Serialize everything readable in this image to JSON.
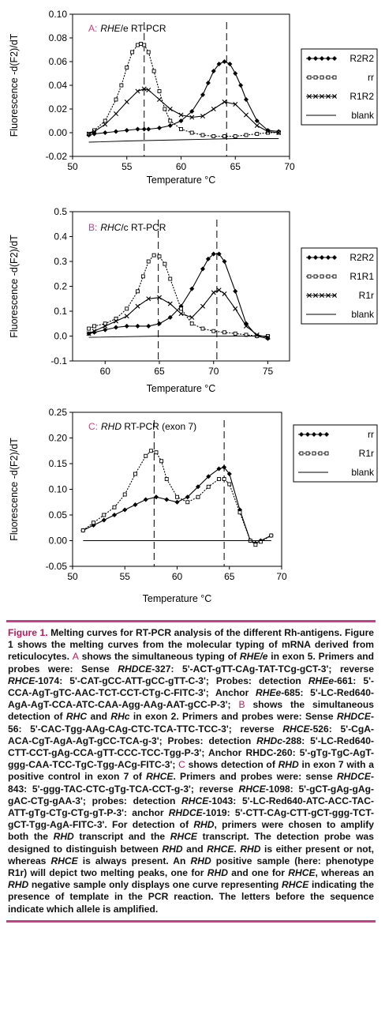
{
  "chart_data": [
    {
      "type": "line",
      "panel_letter": "A",
      "title": "RHE/e RT-PCR",
      "title_letter": "A:",
      "title_rest_italic": "RHE",
      "title_rest": "/e RT-PCR",
      "xlabel": "Temperature °C",
      "ylabel": "Fluorescence -d(F2)/dT",
      "xlim": [
        50,
        70
      ],
      "ylim": [
        -0.02,
        0.1
      ],
      "xticks": [
        "50",
        "55",
        "60",
        "65",
        "70"
      ],
      "yticks": [
        "-0.02",
        "0.00",
        "0.02",
        "0.04",
        "0.06",
        "0.08",
        "0.10"
      ],
      "vlines": [
        56.6,
        64.2
      ],
      "legend_position": "right",
      "series": [
        {
          "name": "R2R2",
          "style": "filled-diamond",
          "x": [
            51.5,
            52,
            53,
            54,
            55,
            56,
            56.6,
            57,
            58,
            59,
            60,
            61,
            62,
            62.5,
            63,
            63.5,
            64,
            64.5,
            65,
            65.5,
            66,
            67,
            68,
            69
          ],
          "y": [
            -0.002,
            -0.001,
            0,
            0.001,
            0.002,
            0.003,
            0.003,
            0.003,
            0.004,
            0.006,
            0.01,
            0.018,
            0.032,
            0.042,
            0.052,
            0.058,
            0.06,
            0.058,
            0.05,
            0.04,
            0.028,
            0.01,
            0.002,
            0.001
          ]
        },
        {
          "name": "rr",
          "style": "open-square",
          "x": [
            51.5,
            52,
            53,
            54,
            54.5,
            55,
            55.5,
            56,
            56.3,
            56.6,
            57,
            57.5,
            58,
            58.5,
            59,
            60,
            61,
            62,
            63,
            64,
            65,
            66,
            67,
            68,
            69
          ],
          "y": [
            -0.001,
            0.002,
            0.01,
            0.028,
            0.04,
            0.055,
            0.068,
            0.074,
            0.075,
            0.074,
            0.068,
            0.052,
            0.035,
            0.02,
            0.01,
            0.003,
            0.0,
            -0.002,
            -0.003,
            -0.003,
            -0.003,
            -0.002,
            -0.001,
            0.0,
            0.0
          ],
          "_": ""
        },
        {
          "name": "R1R2",
          "style": "x-marker",
          "x": [
            51.5,
            52,
            53,
            54,
            55,
            56,
            56.6,
            57,
            58,
            59,
            60,
            61,
            62,
            63,
            64,
            65,
            66,
            67,
            68,
            69
          ],
          "y": [
            -0.001,
            0.001,
            0.007,
            0.016,
            0.026,
            0.035,
            0.037,
            0.036,
            0.028,
            0.02,
            0.015,
            0.013,
            0.014,
            0.02,
            0.026,
            0.024,
            0.015,
            0.006,
            0.001,
            0.0
          ]
        },
        {
          "name": "blank",
          "style": "plain",
          "x": [
            51.5,
            55,
            60,
            65,
            69
          ],
          "y": [
            -0.008,
            -0.007,
            -0.006,
            -0.005,
            -0.005
          ]
        }
      ]
    },
    {
      "type": "line",
      "panel_letter": "B",
      "title": "RHC/c RT-PCR",
      "title_letter": "B:",
      "title_rest_italic": "RHC",
      "title_rest": "/c RT-PCR",
      "xlabel": "Temperature °C",
      "ylabel": "Fluorescence -d(F2)/dT",
      "xlim": [
        57,
        77
      ],
      "ylim": [
        -0.1,
        0.5
      ],
      "xticks": [
        "60",
        "65",
        "70",
        "75"
      ],
      "xtick_values": [
        60,
        65,
        70,
        75
      ],
      "yticks": [
        "-0.1",
        "0.0",
        "0.1",
        "0.2",
        "0.3",
        "0.4",
        "0.5"
      ],
      "vlines": [
        64.9,
        70.3
      ],
      "legend_position": "right",
      "series": [
        {
          "name": "R2R2",
          "style": "filled-diamond",
          "x": [
            58.5,
            59,
            60,
            61,
            62,
            63,
            64,
            65,
            66,
            67,
            68,
            69,
            69.5,
            70,
            70.5,
            71,
            72,
            73,
            74,
            75
          ],
          "y": [
            0.01,
            0.015,
            0.025,
            0.035,
            0.04,
            0.04,
            0.04,
            0.05,
            0.075,
            0.12,
            0.19,
            0.27,
            0.31,
            0.33,
            0.33,
            0.3,
            0.18,
            0.05,
            0.0,
            -0.01
          ]
        },
        {
          "name": "R1R1",
          "style": "open-square",
          "x": [
            58.5,
            59,
            60,
            61,
            62,
            63,
            63.5,
            64,
            64.5,
            65,
            65.5,
            66,
            67,
            68,
            69,
            70,
            71,
            72,
            73,
            74,
            75
          ],
          "y": [
            0.03,
            0.04,
            0.05,
            0.07,
            0.11,
            0.18,
            0.24,
            0.3,
            0.325,
            0.32,
            0.29,
            0.23,
            0.11,
            0.05,
            0.03,
            0.02,
            0.015,
            0.01,
            0.005,
            0.0,
            0.0
          ]
        },
        {
          "name": "R1r",
          "style": "x-marker",
          "x": [
            58.5,
            59,
            60,
            61,
            62,
            63,
            64,
            65,
            66,
            67,
            68,
            69,
            70,
            70.5,
            71,
            72,
            73,
            74,
            75
          ],
          "y": [
            0.01,
            0.02,
            0.04,
            0.06,
            0.08,
            0.12,
            0.15,
            0.155,
            0.13,
            0.09,
            0.075,
            0.12,
            0.175,
            0.185,
            0.17,
            0.11,
            0.04,
            0.005,
            -0.005
          ]
        },
        {
          "name": "blank",
          "style": "plain",
          "x": [
            58.5,
            65,
            70,
            75
          ],
          "y": [
            -0.005,
            0.0,
            0.0,
            0.0
          ]
        }
      ]
    },
    {
      "type": "line",
      "panel_letter": "C",
      "title": "RHD RT-PCR (exon 7)",
      "title_letter": "C:",
      "title_rest_italic": "RHD",
      "title_rest": " RT-PCR (exon 7)",
      "xlabel": "Temperature °C",
      "ylabel": "Fluorescence -d(F2)/dT",
      "xlim": [
        50,
        70
      ],
      "ylim": [
        -0.05,
        0.25
      ],
      "xticks": [
        "50",
        "55",
        "60",
        "65",
        "70"
      ],
      "yticks": [
        "-0.05",
        "0.00",
        "0.05",
        "0.10",
        "0.15",
        "0.20",
        "0.25"
      ],
      "vlines": [
        57.8,
        64.5
      ],
      "legend_position": "right",
      "series": [
        {
          "name": "rr",
          "style": "filled-diamond",
          "x": [
            51,
            52,
            53,
            54,
            55,
            56,
            57,
            58,
            59,
            60,
            61,
            62,
            63,
            64,
            64.5,
            65,
            66,
            67,
            67.5,
            68,
            69
          ],
          "y": [
            0.02,
            0.03,
            0.04,
            0.05,
            0.06,
            0.07,
            0.08,
            0.085,
            0.08,
            0.075,
            0.085,
            0.105,
            0.125,
            0.14,
            0.143,
            0.13,
            0.06,
            0.0,
            -0.005,
            0.0,
            0.01
          ]
        },
        {
          "name": "R1r",
          "style": "open-square",
          "x": [
            51,
            52,
            53,
            54,
            55,
            56,
            57,
            57.5,
            58,
            58.5,
            59,
            60,
            61,
            62,
            63,
            64,
            64.5,
            65,
            66,
            67,
            67.5,
            68,
            69
          ],
          "y": [
            0.02,
            0.035,
            0.05,
            0.065,
            0.09,
            0.13,
            0.165,
            0.175,
            0.172,
            0.155,
            0.12,
            0.085,
            0.075,
            0.085,
            0.105,
            0.12,
            0.12,
            0.11,
            0.055,
            0.0,
            -0.008,
            -0.002,
            0.01
          ]
        },
        {
          "name": "blank",
          "style": "plain",
          "x": [
            51,
            55,
            60,
            65,
            69
          ],
          "y": [
            0.0,
            0.0,
            0.0,
            0.0,
            0.0
          ]
        }
      ]
    }
  ],
  "caption": {
    "figure_label": "Figure 1.",
    "segments": [
      {
        "t": " Melting curves for RT-PCR analysis of the different Rh-antigens. Figure 1 shows the melting curves from the molecular typing of mRNA derived from reticulocytes. ",
        "s": "b"
      },
      {
        "t": "A",
        "s": "pink"
      },
      {
        "t": " shows the simultaneous typing of ",
        "s": "b"
      },
      {
        "t": "RHE/e",
        "s": "bi"
      },
      {
        "t": " in exon 5. Primers and probes were: Sense ",
        "s": "b"
      },
      {
        "t": "RHDCE",
        "s": "bi"
      },
      {
        "t": "-327: 5'-ACT-gTT-CAg-TAT-TCg-gCT-3'; reverse ",
        "s": "b"
      },
      {
        "t": "RHCE",
        "s": "bi"
      },
      {
        "t": "-1074: 5'-CAT-gCC-ATT-gCC-gTT-C-3'; Probes: detection ",
        "s": "b"
      },
      {
        "t": "RHEe",
        "s": "bi"
      },
      {
        "t": "-661: 5'-CCA-AgT-gTC-AAC-TCT-CCT-CTg-C-FITC-3'; Anchor ",
        "s": "b"
      },
      {
        "t": "RHEe",
        "s": "bi"
      },
      {
        "t": "-685: 5'-LC-Red640-AgA-AgT-CCA-ATC-CAA-Agg-AAg-AAT-gCC-P-3'; ",
        "s": "b"
      },
      {
        "t": "B",
        "s": "pink"
      },
      {
        "t": " shows the simultaneous detection of ",
        "s": "b"
      },
      {
        "t": "RHC",
        "s": "bi"
      },
      {
        "t": " and ",
        "s": "b"
      },
      {
        "t": "RHc",
        "s": "bi"
      },
      {
        "t": " in exon 2. Primers and probes were: Sense ",
        "s": "b"
      },
      {
        "t": "RHDCE",
        "s": "bi"
      },
      {
        "t": "-56: 5'-CAC-Tgg-AAg-CAg-CTC-TCA-TTC-TCC-3'; reverse ",
        "s": "b"
      },
      {
        "t": "RHCE",
        "s": "bi"
      },
      {
        "t": "-526: 5'-CgA-ACA-CgT-AgA-AgT-gCC-TCA-g-3'; Probes: detection ",
        "s": "b"
      },
      {
        "t": "RHDc",
        "s": "bi"
      },
      {
        "t": "-288: 5'-LC-Red640-CTT-CCT-gAg-CCA-gTT-CCC-TCC-Tgg-P-3'; Anchor RHDC-260: 5'-gTg-TgC-AgT-ggg-CAA-TCC-TgC-Tgg-ACg-FITC-3'; ",
        "s": "b"
      },
      {
        "t": "C",
        "s": "pink"
      },
      {
        "t": " shows detection of ",
        "s": "b"
      },
      {
        "t": "RHD",
        "s": "bi"
      },
      {
        "t": " in exon 7 with a positive control in exon 7 of ",
        "s": "b"
      },
      {
        "t": "RHCE",
        "s": "bi"
      },
      {
        "t": ". Primers and probes were: sense ",
        "s": "b"
      },
      {
        "t": "RHDCE",
        "s": "bi"
      },
      {
        "t": "-843: 5'-ggg-TAC-CTC-gTg-TCA-CCT-g-3'; reverse ",
        "s": "b"
      },
      {
        "t": "RHCE",
        "s": "bi"
      },
      {
        "t": "-1098: 5'-gCT-gAg-gAg-gAC-CTg-gAA-3'; probes: detection ",
        "s": "b"
      },
      {
        "t": "RHCE",
        "s": "bi"
      },
      {
        "t": "-1043: 5'-LC-Red640-ATC-ACC-TAC-ATT-gTg-CTg-CTg-gT-P-3': anchor ",
        "s": "b"
      },
      {
        "t": "RHDCE",
        "s": "bi"
      },
      {
        "t": "-1019: 5'-CTT-CAg-CTT-gCT-ggg-TCT-gCT-Tgg-AgA-FITC-3'. For detection of ",
        "s": "b"
      },
      {
        "t": "RHD",
        "s": "bi"
      },
      {
        "t": ", primers were chosen to amplify both the ",
        "s": "b"
      },
      {
        "t": "RHD",
        "s": "bi"
      },
      {
        "t": " transcript and the ",
        "s": "b"
      },
      {
        "t": "RHCE",
        "s": "bi"
      },
      {
        "t": " transcript. The detection probe was designed to distinguish between ",
        "s": "b"
      },
      {
        "t": "RHD",
        "s": "bi"
      },
      {
        "t": " and ",
        "s": "b"
      },
      {
        "t": "RHCE",
        "s": "bi"
      },
      {
        "t": ". ",
        "s": "b"
      },
      {
        "t": "RHD",
        "s": "bi"
      },
      {
        "t": " is either present or not, whereas ",
        "s": "b"
      },
      {
        "t": "RHCE",
        "s": "bi"
      },
      {
        "t": " is always present. An ",
        "s": "b"
      },
      {
        "t": "RHD",
        "s": "bi"
      },
      {
        "t": " positive sample (here: phenotype R1r) will depict two melting peaks, one for ",
        "s": "b"
      },
      {
        "t": "RHD",
        "s": "bi"
      },
      {
        "t": " and one for ",
        "s": "b"
      },
      {
        "t": "RHCE",
        "s": "bi"
      },
      {
        "t": ", whereas an ",
        "s": "b"
      },
      {
        "t": "RHD",
        "s": "bi"
      },
      {
        "t": " negative sample only displays one curve representing ",
        "s": "b"
      },
      {
        "t": "RHCE",
        "s": "bi"
      },
      {
        "t": " indicating the presence of template in the PCR reaction. The letters before the sequence indicate which allele is amplified.",
        "s": "b"
      }
    ]
  },
  "colors": {
    "accent": "#cc3d85",
    "figure_label": "#c2185b",
    "line": "#000000"
  }
}
